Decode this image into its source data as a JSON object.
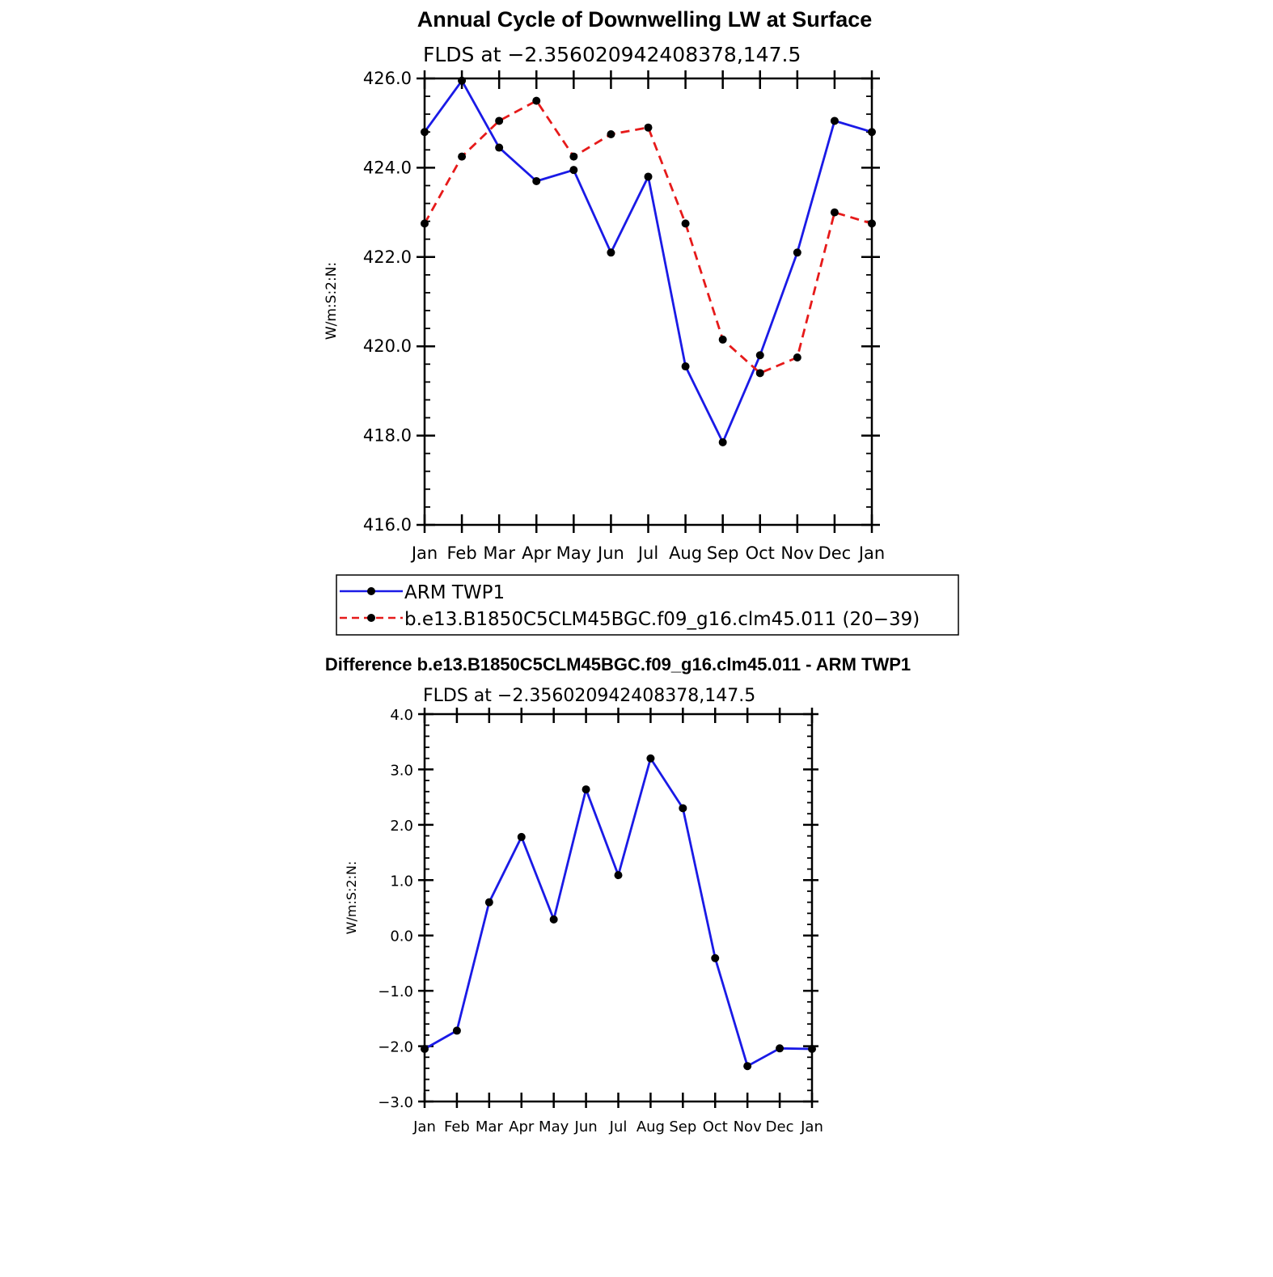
{
  "colors": {
    "obs": "#1a1ae6",
    "model": "#e61a1a",
    "marker": "#000000",
    "axis": "#000000"
  },
  "top_panel": {
    "title": "Annual Cycle of Downwelling LW at Surface",
    "subtitle": "FLDS at −2.356020942408378,147.5",
    "ylabel": "W/m:S:2:N:",
    "legend": {
      "obs": "ARM TWP1",
      "model": "b.e13.B1850C5CLM45BGC.f09_g16.clm45.011 (20−39)"
    }
  },
  "bottom_panel": {
    "title": "Difference b.e13.B1850C5CLM45BGC.f09_g16.clm45.011 - ARM TWP1",
    "subtitle": "FLDS at −2.356020942408378,147.5",
    "ylabel": "W/m:S:2:N:"
  },
  "chart_data": [
    {
      "type": "line",
      "title": "Annual Cycle of Downwelling LW at Surface",
      "subtitle": "FLDS at −2.356020942408378,147.5",
      "xlabel": "",
      "ylabel": "W/m:S:2:N:",
      "categories": [
        "Jan",
        "Feb",
        "Mar",
        "Apr",
        "May",
        "Jun",
        "Jul",
        "Aug",
        "Sep",
        "Oct",
        "Nov",
        "Dec",
        "Jan"
      ],
      "ylim": [
        416.0,
        426.0
      ],
      "yticks": [
        416.0,
        418.0,
        420.0,
        422.0,
        424.0,
        426.0
      ],
      "ytick_labels": [
        "416.0",
        "418.0",
        "420.0",
        "422.0",
        "424.0",
        "426.0"
      ],
      "legend_position": "below",
      "series": [
        {
          "name": "ARM TWP1",
          "style": "solid",
          "color": "#1a1ae6",
          "values": [
            424.8,
            425.95,
            424.45,
            423.7,
            423.95,
            422.1,
            423.8,
            419.55,
            417.85,
            419.8,
            422.1,
            425.05,
            424.8
          ]
        },
        {
          "name": "b.e13.B1850C5CLM45BGC.f09_g16.clm45.011 (20−39)",
          "style": "dashed",
          "color": "#e61a1a",
          "values": [
            422.75,
            424.25,
            425.05,
            425.5,
            424.25,
            424.75,
            424.9,
            422.75,
            420.15,
            419.4,
            419.75,
            423.0,
            422.75
          ]
        }
      ]
    },
    {
      "type": "line",
      "title": "Difference b.e13.B1850C5CLM45BGC.f09_g16.clm45.011 - ARM TWP1",
      "subtitle": "FLDS at −2.356020942408378,147.5",
      "xlabel": "",
      "ylabel": "W/m:S:2:N:",
      "categories": [
        "Jan",
        "Feb",
        "Mar",
        "Apr",
        "May",
        "Jun",
        "Jul",
        "Aug",
        "Sep",
        "Oct",
        "Nov",
        "Dec",
        "Jan"
      ],
      "ylim": [
        -3.0,
        4.0
      ],
      "yticks": [
        -3.0,
        -2.0,
        -1.0,
        0.0,
        1.0,
        2.0,
        3.0,
        4.0
      ],
      "ytick_labels": [
        "−3.0",
        "−2.0",
        "−1.0",
        "0.0",
        "1.0",
        "2.0",
        "3.0",
        "4.0"
      ],
      "series": [
        {
          "style": "solid",
          "color": "#1a1ae6",
          "values": [
            -2.05,
            -1.72,
            0.6,
            1.78,
            0.29,
            2.64,
            1.09,
            3.2,
            2.3,
            -0.41,
            -2.36,
            -2.04,
            -2.05
          ]
        }
      ]
    }
  ]
}
